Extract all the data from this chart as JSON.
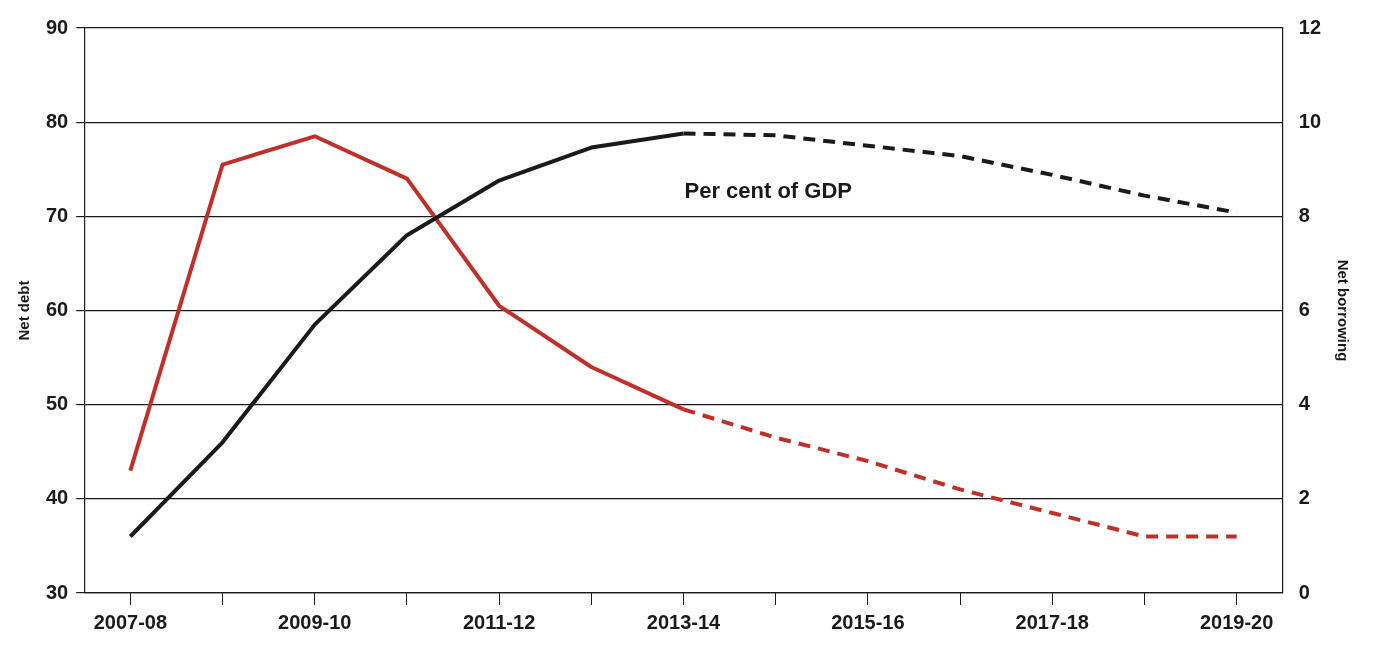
{
  "chart_data": {
    "type": "line",
    "categories": [
      "2007-08",
      null,
      "2009-10",
      null,
      "2011-12",
      null,
      "2013-14",
      null,
      "2015-16",
      null,
      "2017-18",
      null,
      "2019-20"
    ],
    "ylabel": "Net debt",
    "y2label": "Net borrowing",
    "ylim": [
      30,
      90
    ],
    "yticks": [
      30,
      40,
      50,
      60,
      70,
      80,
      90
    ],
    "y2lim": [
      0,
      12
    ],
    "y2ticks": [
      0,
      2,
      4,
      6,
      8,
      10,
      12
    ],
    "grid": "y",
    "legend": false,
    "marker": "none",
    "annotations": [
      "Per cent of GDP"
    ],
    "series": [
      {
        "color": "#1a1a1a",
        "line_style": "solid",
        "values": [
          36,
          46,
          58.5,
          68,
          73.8,
          77.3,
          78.8,
          null,
          null,
          null,
          null,
          null,
          null
        ]
      },
      {
        "color": "#1a1a1a",
        "line_style": "dashed",
        "values": [
          null,
          null,
          null,
          null,
          null,
          null,
          78.8,
          78.6,
          77.5,
          76.4,
          74.4,
          72.2,
          70.4
        ]
      },
      {
        "color": "#c0302a",
        "line_style": "solid",
        "axis": "y2",
        "values": [
          2.6,
          9.1,
          9.7,
          8.8,
          6.1,
          4.8,
          3.9,
          null,
          null,
          null,
          null,
          null,
          null
        ]
      },
      {
        "color": "#c0302a",
        "line_style": "dashed",
        "axis": "y2",
        "values": [
          null,
          null,
          null,
          null,
          null,
          null,
          3.9,
          3.3,
          2.8,
          2.2,
          1.7,
          1.2,
          1.2
        ]
      }
    ]
  }
}
